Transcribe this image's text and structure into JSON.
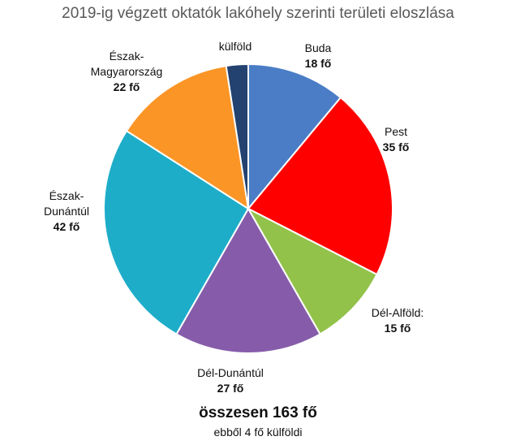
{
  "chart_data": {
    "type": "pie",
    "title": "2019-ig végzett oktatók lakóhely szerinti területi eloszlása",
    "slices": [
      {
        "label": "Buda",
        "value": 18,
        "value_label": "18 fő",
        "color": "#4a7dc6"
      },
      {
        "label": "Pest",
        "value": 35,
        "value_label": "35 fő",
        "color": "#ff0000"
      },
      {
        "label": "Dél-Alföld:",
        "value": 15,
        "value_label": "15 fő",
        "color": "#92c24a"
      },
      {
        "label": "Dél-Dunántúl",
        "value": 27,
        "value_label": "27 fő",
        "color": "#865caa"
      },
      {
        "label": "Észak-\nDunántúl",
        "value": 42,
        "value_label": "42 fő",
        "color": "#1eadc9"
      },
      {
        "label": "Észak-\nMagyarország",
        "value": 22,
        "value_label": "22 fő",
        "color": "#fb9526"
      },
      {
        "label": "külföld",
        "value": 4,
        "value_label": "",
        "color": "#24426f"
      }
    ],
    "total_label": "összesen 163 fő",
    "total_note": "ebből 4 fő külföldi",
    "legend": "none"
  }
}
